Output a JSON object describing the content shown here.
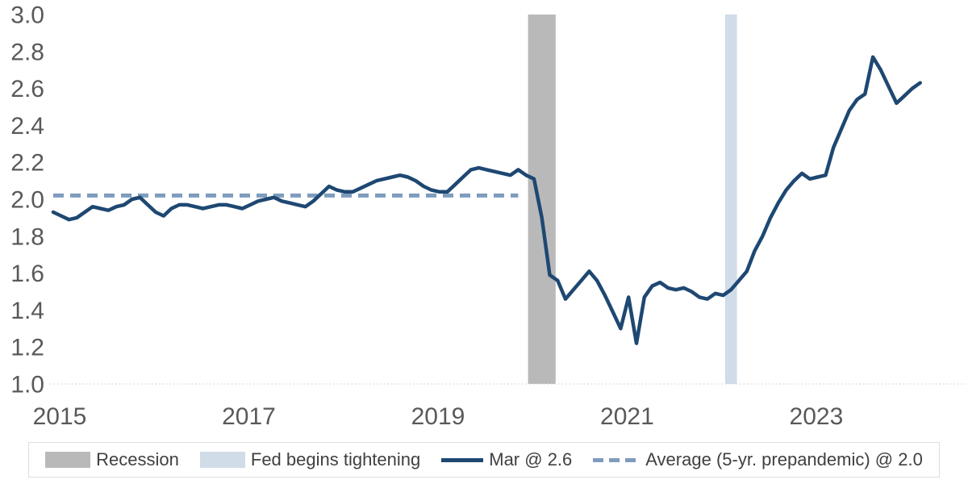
{
  "chart_data": {
    "type": "line",
    "title": "",
    "xlabel": "",
    "ylabel": "",
    "x_frequency": "monthly",
    "x_start": "2015-01",
    "x_end": "2024-03",
    "ylim": [
      1.0,
      3.0
    ],
    "ytick_labels": [
      "3.0",
      "2.8",
      "2.6",
      "2.4",
      "2.2",
      "2.0",
      "1.8",
      "1.6",
      "1.4",
      "1.2",
      "1.0"
    ],
    "xtick_labels": [
      "2015",
      "2017",
      "2019",
      "2021",
      "2023"
    ],
    "xtick_month_offsets": [
      0,
      24,
      48,
      72,
      96
    ],
    "grid": "none (faint dotted bottom baseline only)",
    "axis_text_color": "#595959",
    "baseline_color": "#dcdcdc",
    "legend_position": "bottom",
    "series": [
      {
        "name": "Mar @ 2.6",
        "style": "solid",
        "color": "#1e4872",
        "last_point": {
          "month": "2024-03",
          "value": 2.6
        },
        "values": [
          1.93,
          1.91,
          1.89,
          1.9,
          1.93,
          1.96,
          1.95,
          1.94,
          1.96,
          1.97,
          2.0,
          2.01,
          1.97,
          1.93,
          1.91,
          1.95,
          1.97,
          1.97,
          1.96,
          1.95,
          1.96,
          1.97,
          1.97,
          1.96,
          1.95,
          1.97,
          1.99,
          2.0,
          2.01,
          1.99,
          1.98,
          1.97,
          1.96,
          1.99,
          2.03,
          2.07,
          2.05,
          2.04,
          2.04,
          2.06,
          2.08,
          2.1,
          2.11,
          2.12,
          2.13,
          2.12,
          2.1,
          2.07,
          2.05,
          2.04,
          2.04,
          2.08,
          2.12,
          2.16,
          2.17,
          2.16,
          2.15,
          2.14,
          2.13,
          2.16,
          2.13,
          2.11,
          1.9,
          1.59,
          1.56,
          1.46,
          1.51,
          1.56,
          1.61,
          1.56,
          1.48,
          1.39,
          1.3,
          1.47,
          1.22,
          1.47,
          1.53,
          1.55,
          1.52,
          1.51,
          1.52,
          1.5,
          1.47,
          1.46,
          1.49,
          1.48,
          1.51,
          1.56,
          1.61,
          1.72,
          1.8,
          1.9,
          1.98,
          2.05,
          2.1,
          2.14,
          2.11,
          2.12,
          2.13,
          2.28,
          2.38,
          2.48,
          2.54,
          2.57,
          2.77,
          2.7,
          2.61,
          2.52,
          2.56,
          2.6,
          2.63
        ]
      },
      {
        "name": "Average (5-yr. prepandemic) @ 2.0",
        "style": "dashed",
        "color": "#7e9cbd",
        "value": 2.02,
        "from": "2015-01",
        "to": "2019-12"
      }
    ],
    "bands": [
      {
        "name": "Recession",
        "color": "#b9b9b9",
        "from": "2020-02",
        "to": "2020-04"
      },
      {
        "name": "Fed begins tightening",
        "color": "#d0dce8",
        "from": "2022-03",
        "to": "2022-03"
      }
    ]
  },
  "legend": {
    "items": [
      {
        "label": "Recession",
        "swatch": "band",
        "color": "#b9b9b9"
      },
      {
        "label": "Fed begins tightening",
        "swatch": "band",
        "color": "#d0dce8"
      },
      {
        "label": "Mar @ 2.6",
        "swatch": "line",
        "color": "#1e4872"
      },
      {
        "label": "Average (5-yr. prepandemic) @ 2.0",
        "swatch": "dashed-line",
        "color": "#7e9cbd"
      }
    ]
  }
}
